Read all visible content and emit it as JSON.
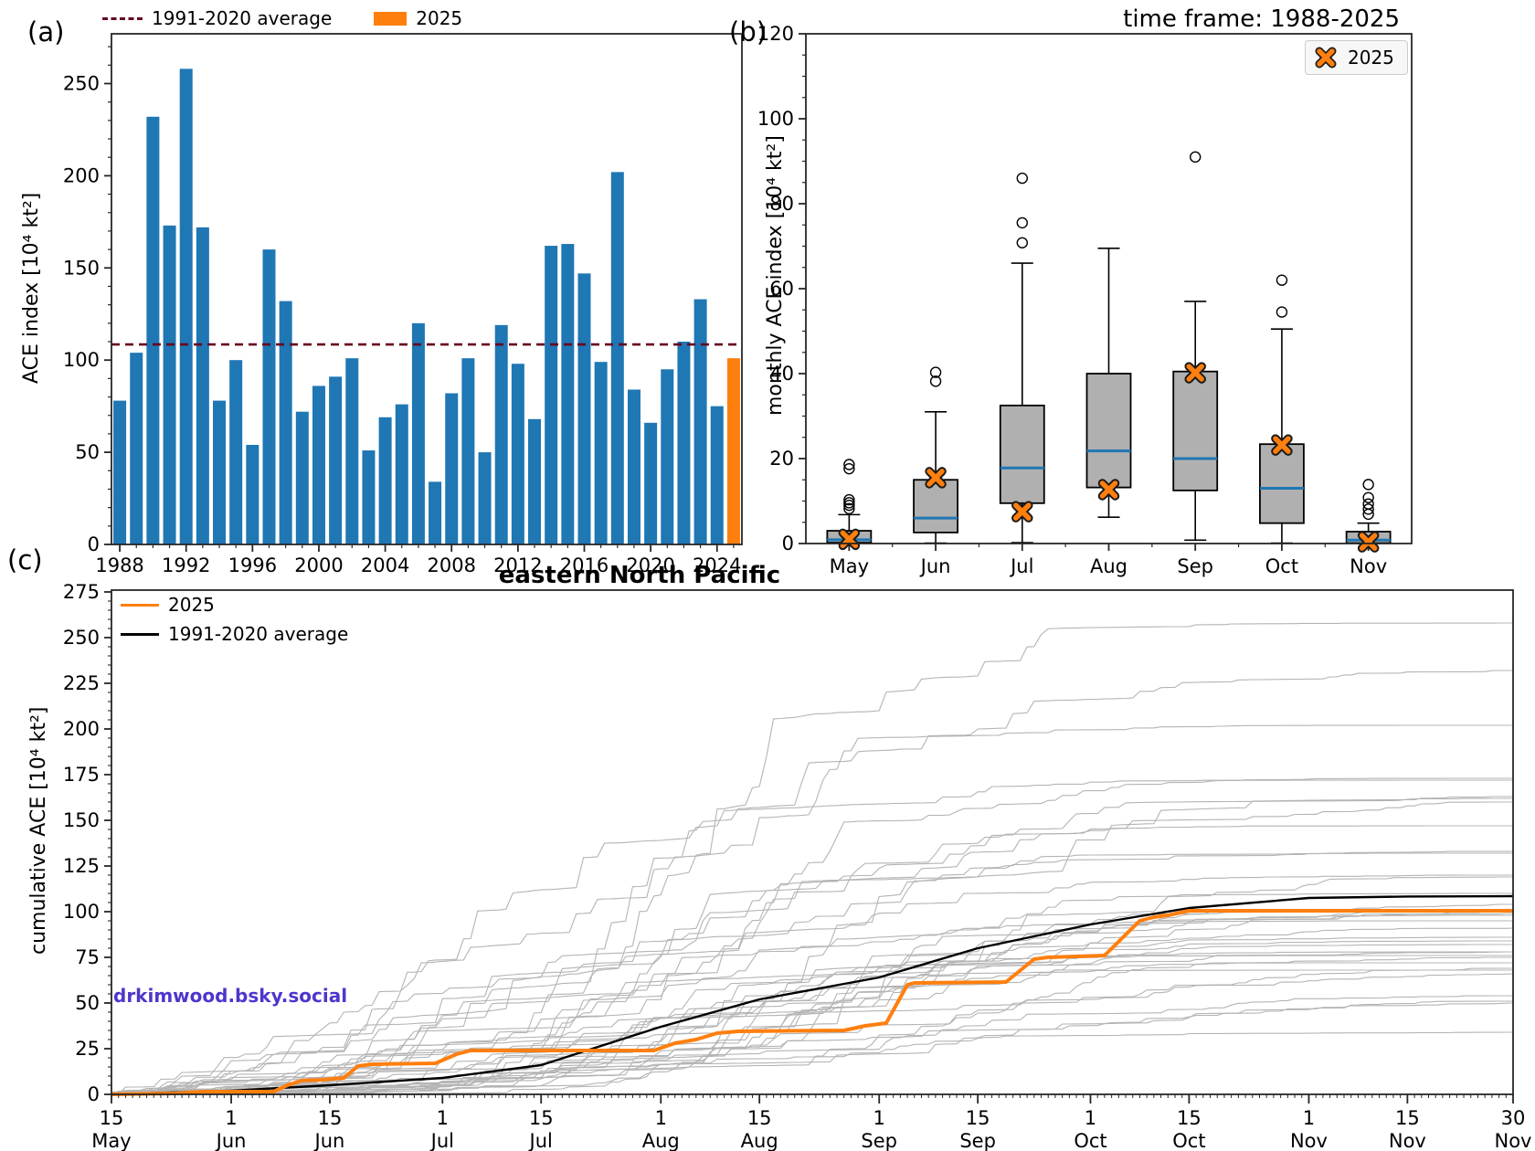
{
  "colors": {
    "bar_blue": "#1f77b4",
    "highlight_orange": "#ff7f0e",
    "average_dashed_red": "#67001f",
    "box_fill_gray": "#b0b0b0",
    "median_blue": "#1f77b4",
    "spaghetti_gray": "#b4b4b4",
    "average_line_black": "#000000",
    "watermark_purple": "#4f35cc"
  },
  "panel_a": {
    "label": "(a)",
    "ylabel": "ACE index [10⁴ kt²]",
    "legend": {
      "average": "1991-2020 average",
      "y2025": "2025"
    }
  },
  "panel_b": {
    "label": "(b)",
    "title": "time frame: 1988-2025",
    "ylabel": "monthly ACE index [10⁴ kt²]",
    "legend": {
      "y2025": "2025"
    }
  },
  "panel_c": {
    "label": "(c)",
    "title": "eastern North Pacific",
    "ylabel": "cumulative ACE [10⁴ kt²]",
    "legend": {
      "y2025": "2025",
      "average": "1991-2020 average"
    },
    "watermark": "drkimwood.bsky.social"
  },
  "chart_data": [
    {
      "type": "bar",
      "panel": "a",
      "ylabel": "ACE index [10⁴ kt²]",
      "ylim": [
        0,
        277
      ],
      "y_ticks": [
        0,
        50,
        100,
        150,
        200,
        250
      ],
      "x_tick_years": [
        1988,
        1992,
        1996,
        2000,
        2004,
        2008,
        2012,
        2016,
        2020,
        2024
      ],
      "categories": [
        1988,
        1989,
        1990,
        1991,
        1992,
        1993,
        1994,
        1995,
        1996,
        1997,
        1998,
        1999,
        2000,
        2001,
        2002,
        2003,
        2004,
        2005,
        2006,
        2007,
        2008,
        2009,
        2010,
        2011,
        2012,
        2013,
        2014,
        2015,
        2016,
        2017,
        2018,
        2019,
        2020,
        2021,
        2022,
        2023,
        2024,
        2025
      ],
      "values": [
        78,
        104,
        232,
        173,
        258,
        172,
        78,
        100,
        54,
        160,
        132,
        72,
        86,
        91,
        101,
        51,
        69,
        76,
        120,
        34,
        82,
        101,
        50,
        119,
        98,
        68,
        162,
        163,
        147,
        99,
        202,
        84,
        66,
        95,
        110,
        133,
        75,
        101
      ],
      "highlight_year": 2025,
      "average_line": 108.5,
      "average_label": "1991-2020 average"
    },
    {
      "type": "box",
      "panel": "b",
      "title": "time frame: 1988-2025",
      "ylabel": "monthly ACE index [10⁴ kt²]",
      "ylim": [
        0,
        120
      ],
      "y_ticks": [
        0,
        20,
        40,
        60,
        80,
        100,
        120
      ],
      "categories": [
        "May",
        "Jun",
        "Jul",
        "Aug",
        "Sep",
        "Oct",
        "Nov"
      ],
      "stats": [
        {
          "month": "May",
          "lo": 0.0,
          "q1": 0.2,
          "median": 0.9,
          "q3": 3.0,
          "hi": 6.8,
          "outliers": [
            8.2,
            9.0,
            9.6,
            10.3,
            17.6,
            18.6
          ]
        },
        {
          "month": "Jun",
          "lo": 0.1,
          "q1": 2.6,
          "median": 6.0,
          "q3": 15.0,
          "hi": 31.0,
          "outliers": [
            38.2,
            40.3
          ]
        },
        {
          "month": "Jul",
          "lo": 0.2,
          "q1": 9.5,
          "median": 17.8,
          "q3": 32.5,
          "hi": 66.0,
          "outliers": [
            70.8,
            75.5,
            86.0
          ]
        },
        {
          "month": "Aug",
          "lo": 6.2,
          "q1": 13.2,
          "median": 21.8,
          "q3": 40.0,
          "hi": 69.5,
          "outliers": []
        },
        {
          "month": "Sep",
          "lo": 0.8,
          "q1": 12.5,
          "median": 20.0,
          "q3": 40.5,
          "hi": 57.0,
          "outliers": [
            91.0
          ]
        },
        {
          "month": "Oct",
          "lo": 0.1,
          "q1": 4.8,
          "median": 13.0,
          "q3": 23.4,
          "hi": 50.5,
          "outliers": [
            54.5,
            62.0
          ]
        },
        {
          "month": "Nov",
          "lo": 0.0,
          "q1": 0.1,
          "median": 0.8,
          "q3": 2.8,
          "hi": 4.8,
          "outliers": [
            6.9,
            8.1,
            9.3,
            10.8,
            13.9
          ]
        }
      ],
      "markers_2025": [
        1.0,
        15.5,
        7.5,
        12.7,
        40.2,
        23.2,
        0.4
      ],
      "legend_label": "2025"
    },
    {
      "type": "line",
      "panel": "c",
      "title": "eastern North Pacific",
      "ylabel": "cumulative ACE [10⁴ kt²]",
      "ylim": [
        0,
        276
      ],
      "y_ticks": [
        0,
        25,
        50,
        75,
        100,
        125,
        150,
        175,
        200,
        225,
        250,
        275
      ],
      "x_axis_days_from_may15": [
        0,
        199
      ],
      "x_ticks": [
        {
          "day": 0,
          "date": "15",
          "month": "May"
        },
        {
          "day": 17,
          "date": "1",
          "month": "Jun"
        },
        {
          "day": 31,
          "date": "15",
          "month": "Jun"
        },
        {
          "day": 47,
          "date": "1",
          "month": "Jul"
        },
        {
          "day": 61,
          "date": "15",
          "month": "Jul"
        },
        {
          "day": 78,
          "date": "1",
          "month": "Aug"
        },
        {
          "day": 92,
          "date": "15",
          "month": "Aug"
        },
        {
          "day": 109,
          "date": "1",
          "month": "Sep"
        },
        {
          "day": 123,
          "date": "15",
          "month": "Sep"
        },
        {
          "day": 139,
          "date": "1",
          "month": "Oct"
        },
        {
          "day": 153,
          "date": "15",
          "month": "Oct"
        },
        {
          "day": 170,
          "date": "1",
          "month": "Nov"
        },
        {
          "day": 184,
          "date": "15",
          "month": "Nov"
        },
        {
          "day": 199,
          "date": "30",
          "month": "Nov"
        }
      ],
      "series": [
        {
          "name": "2025",
          "color": "#ff7f0e",
          "points": [
            [
              0,
              0
            ],
            [
              9,
              0.5
            ],
            [
              13,
              1.5
            ],
            [
              23,
              1.5
            ],
            [
              25,
              5
            ],
            [
              27,
              7.5
            ],
            [
              30,
              8
            ],
            [
              33,
              9
            ],
            [
              35,
              15.5
            ],
            [
              37,
              16.5
            ],
            [
              46,
              17
            ],
            [
              49,
              22
            ],
            [
              51,
              24
            ],
            [
              77,
              24
            ],
            [
              80,
              28
            ],
            [
              83,
              30
            ],
            [
              86,
              33.5
            ],
            [
              89,
              34.5
            ],
            [
              104,
              35
            ],
            [
              107,
              37.5
            ],
            [
              110,
              39
            ],
            [
              113,
              60
            ],
            [
              114,
              61
            ],
            [
              127,
              61.5
            ],
            [
              131,
              74
            ],
            [
              133,
              75
            ],
            [
              141,
              76
            ],
            [
              146,
              95
            ],
            [
              148,
              97
            ],
            [
              150,
              98
            ],
            [
              153,
              100.5
            ],
            [
              199,
              100.5
            ]
          ]
        },
        {
          "name": "1991-2020 average",
          "color": "#000000",
          "points": [
            [
              0,
              0
            ],
            [
              17,
              2
            ],
            [
              31,
              5
            ],
            [
              47,
              9
            ],
            [
              61,
              16
            ],
            [
              78,
              37
            ],
            [
              92,
              52
            ],
            [
              109,
              64
            ],
            [
              123,
              80
            ],
            [
              139,
              93
            ],
            [
              153,
              102
            ],
            [
              170,
              107.5
            ],
            [
              184,
              108.3
            ],
            [
              199,
              108.5
            ]
          ]
        }
      ],
      "background_years": {
        "note": "gray cumulative curves, one per season 1988-2024; season totals match panel (a)",
        "years": [
          1988,
          1989,
          1990,
          1991,
          1992,
          1993,
          1994,
          1995,
          1996,
          1997,
          1998,
          1999,
          2000,
          2001,
          2002,
          2003,
          2004,
          2005,
          2006,
          2007,
          2008,
          2009,
          2010,
          2011,
          2012,
          2013,
          2014,
          2015,
          2016,
          2017,
          2018,
          2019,
          2020,
          2021,
          2022,
          2023,
          2024
        ],
        "totals": [
          78,
          104,
          232,
          173,
          258,
          172,
          78,
          100,
          54,
          160,
          132,
          72,
          86,
          91,
          101,
          51,
          69,
          76,
          120,
          34,
          82,
          101,
          50,
          119,
          98,
          68,
          162,
          163,
          147,
          99,
          202,
          84,
          66,
          95,
          110,
          133,
          75
        ]
      }
    }
  ]
}
